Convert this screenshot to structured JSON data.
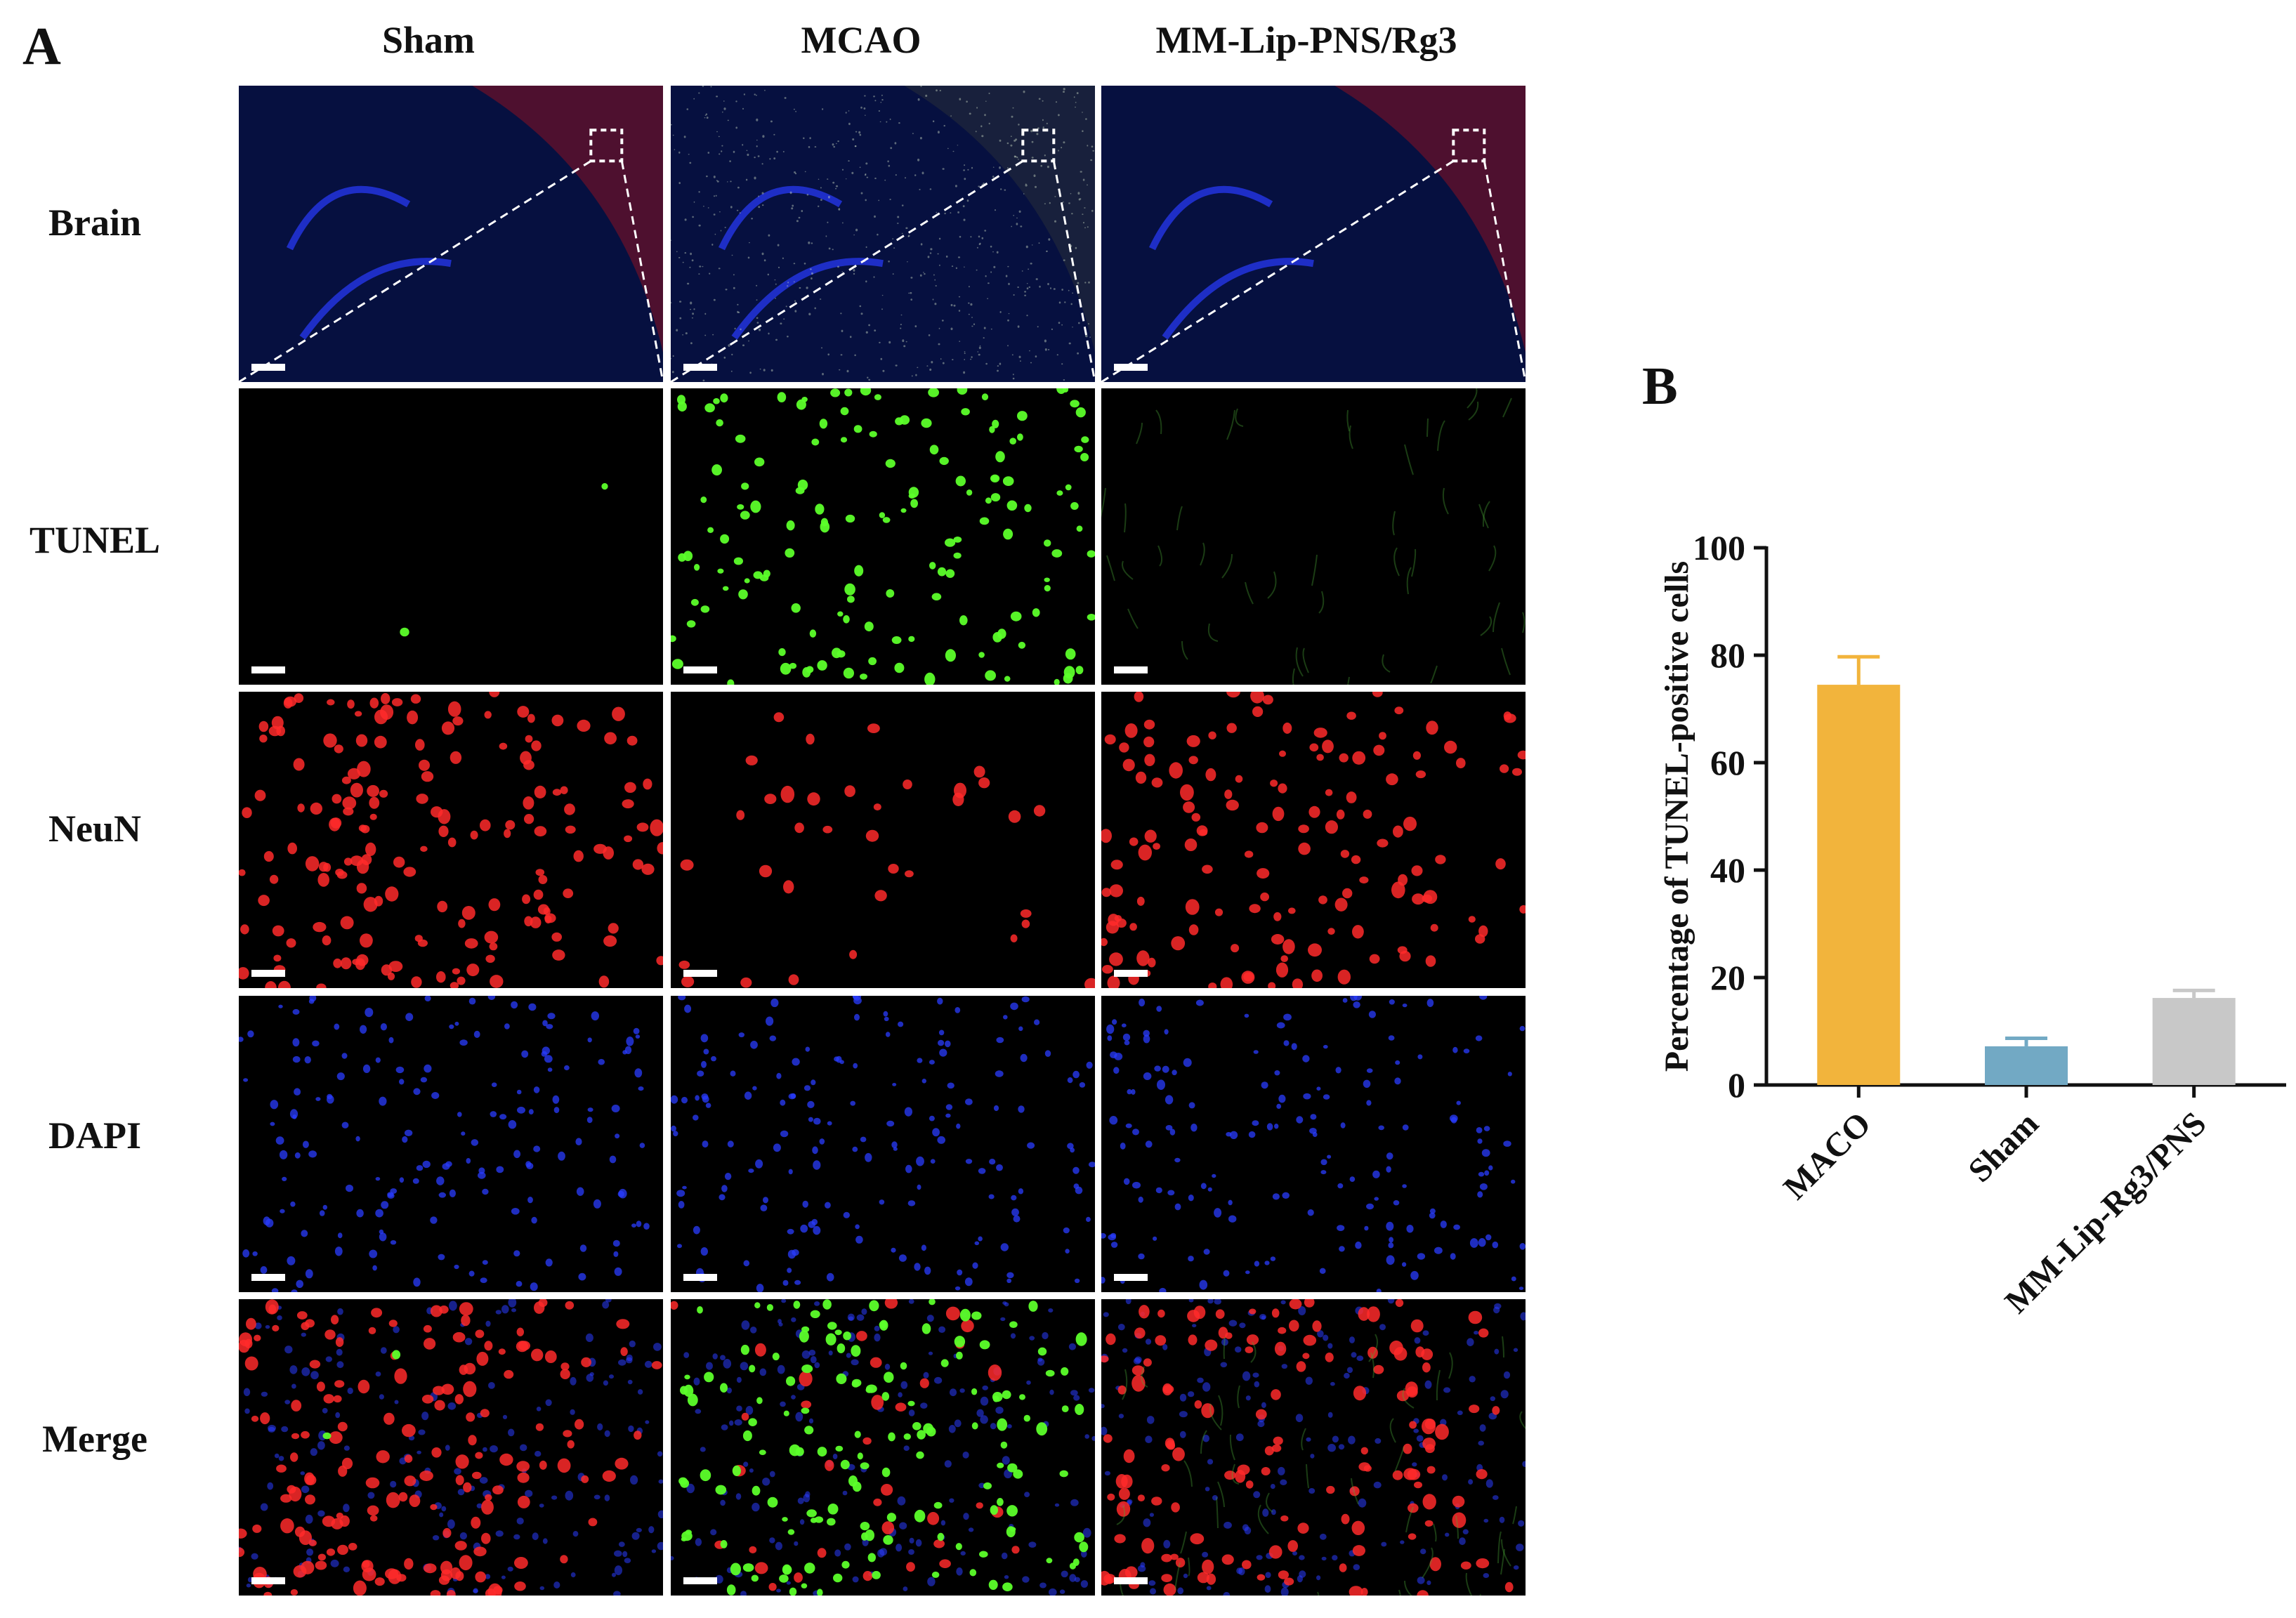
{
  "panel_a": {
    "letter": "A",
    "columns": [
      "Sham",
      "MCAO",
      "MM-Lip-PNS/Rg3"
    ],
    "rows": [
      "Brain",
      "TUNEL",
      "NeuN",
      "DAPI",
      "Merge"
    ],
    "stain_colors": {
      "brain_background": "#061040",
      "cortex_red": "#8a1020",
      "tunel": "#5cff2a",
      "neun": "#ff2a2a",
      "dapi": "#2a3cff",
      "zoom_box": "#ffffff"
    }
  },
  "panel_b": {
    "letter": "B"
  },
  "chart_data": {
    "type": "bar",
    "categories": [
      "MACO",
      "Sham",
      "MM-Lip-Rg3/PNS"
    ],
    "values": [
      74.5,
      7.2,
      16.2
    ],
    "errors": [
      5.2,
      1.5,
      1.4
    ],
    "colors": [
      "#f2b43c",
      "#72a9c4",
      "#c8c8c8"
    ],
    "ylabel": "Percentage of TUNEL-positive cells",
    "ylim": [
      0,
      100
    ],
    "yticks": [
      0,
      20,
      40,
      60,
      80,
      100
    ],
    "grid": false
  }
}
